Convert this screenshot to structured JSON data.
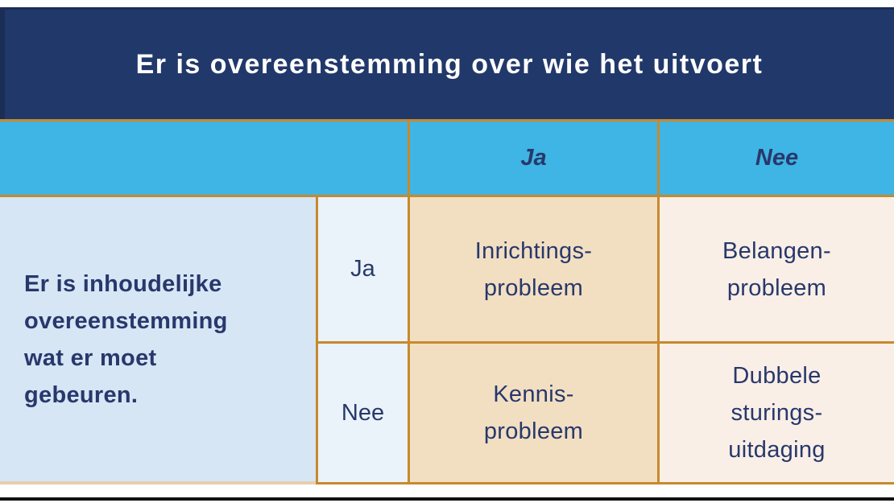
{
  "title": "Er is overeenstemming over wie het uitvoert",
  "column_headers": {
    "ja": "Ja",
    "nee": "Nee"
  },
  "row_question": "Er is inhoudelijke\novereenstemming\nwat er moet\ngebeuren.",
  "row_headers": {
    "ja": "Ja",
    "nee": "Nee"
  },
  "cells": {
    "ja_ja": "Inrichtings-\nprobleem",
    "ja_nee": "Belangen-\nprobleem",
    "nee_ja": "Kennis-\nprobleem",
    "nee_nee": "Dubbele\nsturings-\nuitdaging"
  },
  "colors": {
    "header_bg": "#21386a",
    "header_edge": "#1a2d54",
    "header_text": "#ffffff",
    "column_header_bg": "#3eb5e4",
    "question_cell_bg": "#d6e6f5",
    "row_header_bg": "#eaf2fa",
    "cell_ja_bg": "#f2dfc2",
    "cell_nee_bg": "#f9efe7",
    "border": "#c8892e",
    "border_faded": "#e6cfae",
    "text": "#28386b",
    "bottom_line": "#111111"
  }
}
